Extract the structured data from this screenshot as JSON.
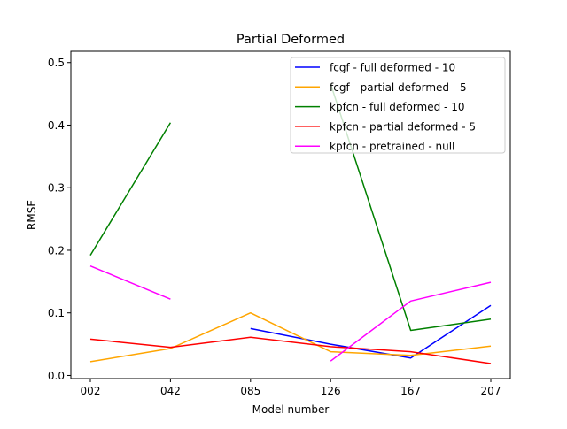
{
  "chart_data": {
    "type": "line",
    "title": "Partial Deformed",
    "xlabel": "Model number",
    "ylabel": "RMSE",
    "categories": [
      "002",
      "042",
      "085",
      "126",
      "167",
      "207"
    ],
    "ylim": [
      -0.005,
      0.518
    ],
    "yticks": [
      0.0,
      0.1,
      0.2,
      0.3,
      0.4,
      0.5
    ],
    "ytick_labels": [
      "0.0",
      "0.1",
      "0.2",
      "0.3",
      "0.4",
      "0.5"
    ],
    "grid": false,
    "legend_position": "top-right",
    "series": [
      {
        "name": "fcgf - full deformed - 10",
        "color": "#0000ff",
        "values": [
          null,
          null,
          0.075,
          0.05,
          0.028,
          0.112
        ]
      },
      {
        "name": "fcgf - partial deformed - 5",
        "color": "#ffa500",
        "values": [
          0.022,
          0.043,
          0.1,
          0.038,
          0.032,
          0.047
        ]
      },
      {
        "name": "kpfcn - full deformed - 10",
        "color": "#008000",
        "values": [
          0.192,
          0.404,
          null,
          0.466,
          0.072,
          0.09
        ]
      },
      {
        "name": "kpfcn - partial deformed - 5",
        "color": "#ff0000",
        "values": [
          0.058,
          0.045,
          0.061,
          0.046,
          0.038,
          0.019
        ]
      },
      {
        "name": "kpfcn - pretrained - null",
        "color": "#ff00ff",
        "values": [
          0.175,
          0.122,
          null,
          0.023,
          0.119,
          0.149
        ]
      }
    ]
  }
}
